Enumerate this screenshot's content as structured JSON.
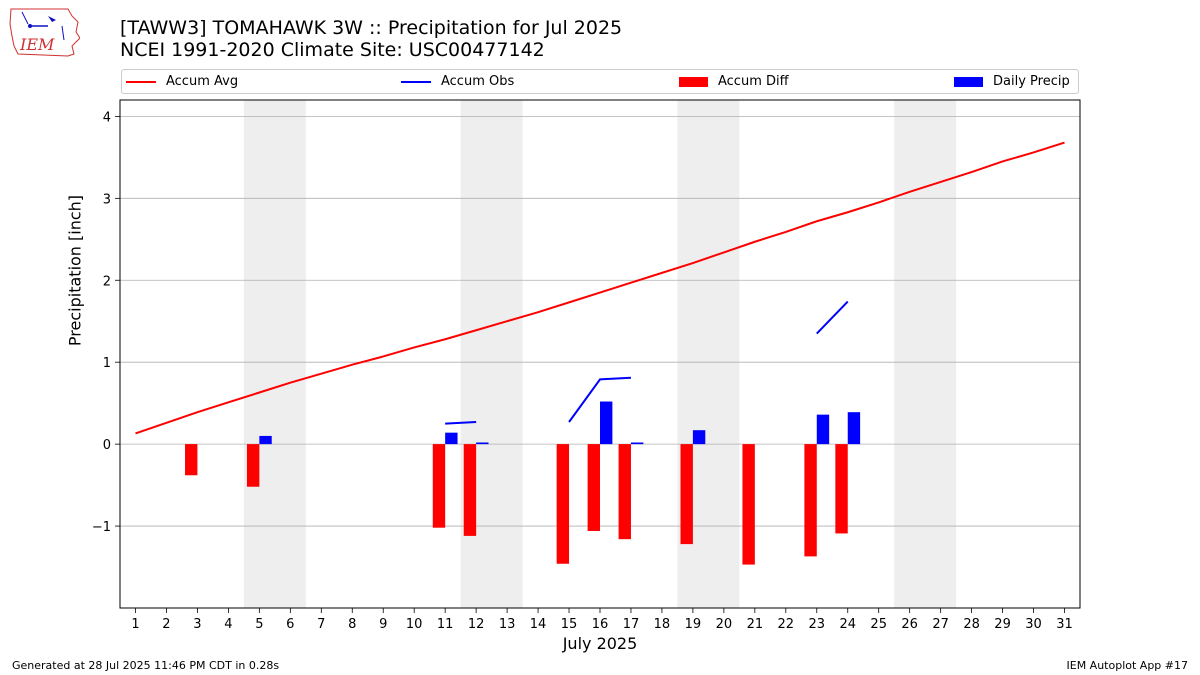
{
  "header": {
    "title_line1": "[TAWW3] TOMAHAWK 3W :: Precipitation for Jul 2025",
    "title_line2": "NCEI 1991-2020 Climate Site: USC00477142"
  },
  "logo": {
    "text": "IEM",
    "icon": "iem-iowa-logo"
  },
  "footer": {
    "left": "Generated at 28 Jul 2025 11:46 PM CDT in 0.28s",
    "right": "IEM Autoplot App #17"
  },
  "legend": {
    "accum_avg": "Accum Avg",
    "accum_obs": "Accum Obs",
    "accum_diff": "Accum Diff",
    "daily_precip": "Daily Precip"
  },
  "chart_data": {
    "type": "bar",
    "xlabel": "July 2025",
    "ylabel": "Precipitation [inch]",
    "xlim": [
      0.5,
      31.5
    ],
    "ylim": [
      -2.0,
      4.2
    ],
    "x_ticks": [
      1,
      2,
      3,
      4,
      5,
      6,
      7,
      8,
      9,
      10,
      11,
      12,
      13,
      14,
      15,
      16,
      17,
      18,
      19,
      20,
      21,
      22,
      23,
      24,
      25,
      26,
      27,
      28,
      29,
      30,
      31
    ],
    "y_ticks": [
      -1,
      0,
      1,
      2,
      3,
      4
    ],
    "y_tick_labels": [
      "−1",
      "0",
      "1",
      "2",
      "3",
      "4"
    ],
    "grid": "horizontal",
    "legend_position": "top",
    "weekend_shading": [
      [
        4.5,
        6.5
      ],
      [
        11.5,
        13.5
      ],
      [
        18.5,
        20.5
      ],
      [
        25.5,
        27.5
      ]
    ],
    "colors": {
      "avg": "#ff0000",
      "obs": "#0000ff",
      "diff": "#ff0000",
      "daily": "#0000ff",
      "shade": "#eeeeee",
      "grid": "#b0b0b0"
    },
    "accum_avg": [
      [
        1,
        0.13
      ],
      [
        2,
        0.26
      ],
      [
        3,
        0.39
      ],
      [
        4,
        0.51
      ],
      [
        5,
        0.63
      ],
      [
        6,
        0.75
      ],
      [
        7,
        0.86
      ],
      [
        8,
        0.97
      ],
      [
        9,
        1.07
      ],
      [
        10,
        1.18
      ],
      [
        11,
        1.28
      ],
      [
        12,
        1.39
      ],
      [
        13,
        1.5
      ],
      [
        14,
        1.61
      ],
      [
        15,
        1.73
      ],
      [
        16,
        1.85
      ],
      [
        17,
        1.97
      ],
      [
        18,
        2.09
      ],
      [
        19,
        2.21
      ],
      [
        20,
        2.34
      ],
      [
        21,
        2.47
      ],
      [
        22,
        2.59
      ],
      [
        23,
        2.72
      ],
      [
        24,
        2.83
      ],
      [
        25,
        2.95
      ],
      [
        26,
        3.08
      ],
      [
        27,
        3.2
      ],
      [
        28,
        3.32
      ],
      [
        29,
        3.45
      ],
      [
        30,
        3.56
      ],
      [
        31,
        3.68
      ]
    ],
    "accum_obs_segments": [
      [
        [
          11,
          0.25
        ],
        [
          12,
          0.27
        ]
      ],
      [
        [
          15,
          0.27
        ],
        [
          16,
          0.79
        ],
        [
          17,
          0.81
        ]
      ],
      [
        [
          23,
          1.35
        ],
        [
          24,
          1.74
        ]
      ]
    ],
    "accum_diff": [
      {
        "day": 3,
        "value": -0.38
      },
      {
        "day": 5,
        "value": -0.52
      },
      {
        "day": 11,
        "value": -1.02
      },
      {
        "day": 12,
        "value": -1.12
      },
      {
        "day": 15,
        "value": -1.46
      },
      {
        "day": 16,
        "value": -1.06
      },
      {
        "day": 17,
        "value": -1.16
      },
      {
        "day": 19,
        "value": -1.22
      },
      {
        "day": 21,
        "value": -1.47
      },
      {
        "day": 23,
        "value": -1.37
      },
      {
        "day": 24,
        "value": -1.09
      }
    ],
    "daily_precip": [
      {
        "day": 5,
        "value": 0.1
      },
      {
        "day": 11,
        "value": 0.14
      },
      {
        "day": 12,
        "value": 0.02
      },
      {
        "day": 16,
        "value": 0.52
      },
      {
        "day": 17,
        "value": 0.02
      },
      {
        "day": 19,
        "value": 0.17
      },
      {
        "day": 23,
        "value": 0.36
      },
      {
        "day": 24,
        "value": 0.39
      }
    ]
  }
}
